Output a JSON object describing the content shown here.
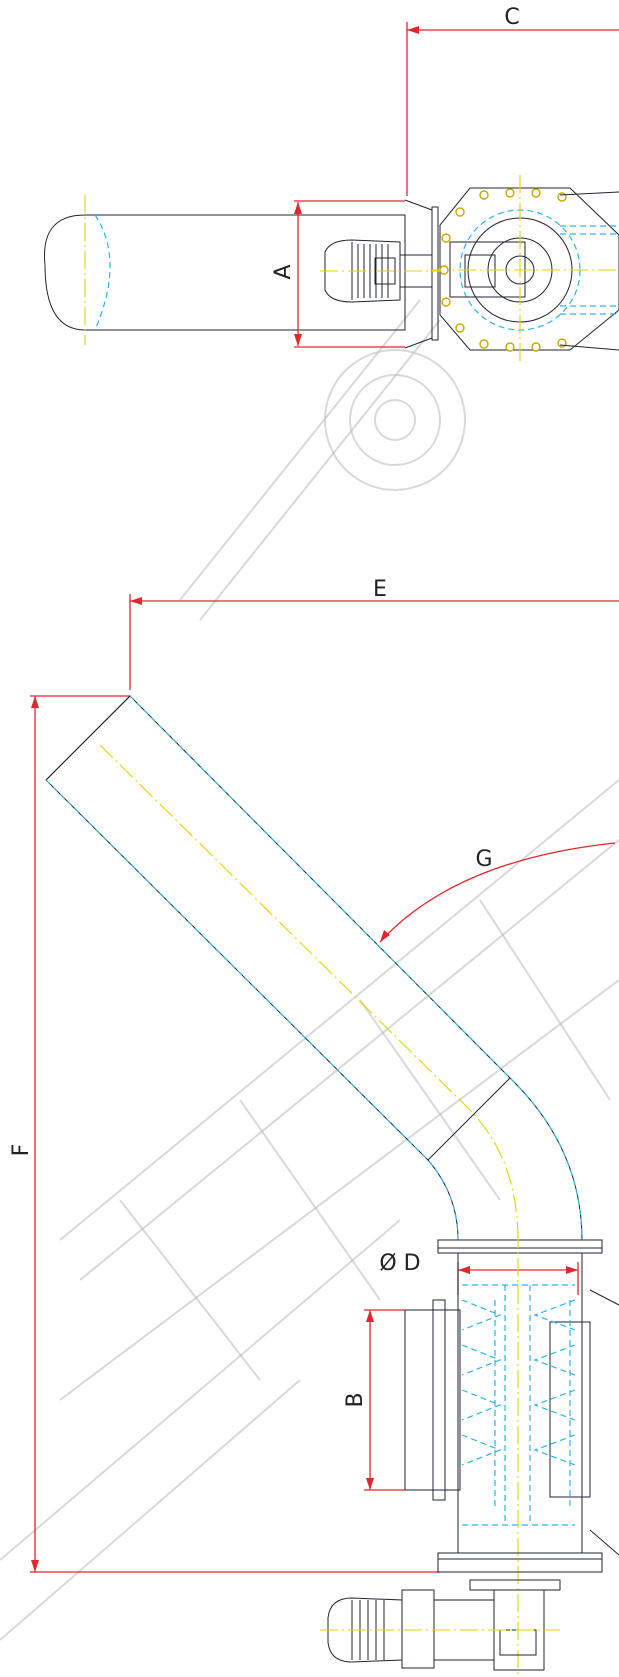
{
  "dimension_labels": {
    "a": "A",
    "b": "B",
    "c": "C",
    "d": "Ø D",
    "e": "E",
    "f": "F",
    "g": "G"
  },
  "colors": {
    "dimension": "#e1262d",
    "outline": "#1e2430",
    "hidden": "#28b6e6",
    "centerline": "#e6d200",
    "watermark": "#b8b8b8"
  }
}
